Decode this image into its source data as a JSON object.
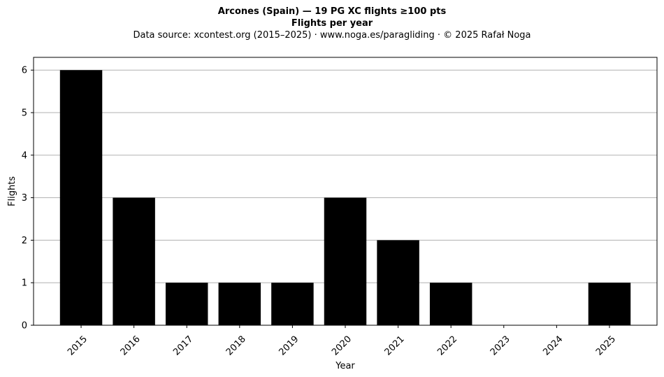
{
  "chart_data": {
    "type": "bar",
    "title": "Arcones (Spain)  —  19 PG XC flights ≥100 pts",
    "subtitle": "Flights per year",
    "source_line": "Data source: xcontest.org (2015–2025)  ·  www.noga.es/paragliding  ·  © 2025 Rafał Noga",
    "xlabel": "Year",
    "ylabel": "Flights",
    "categories": [
      "2015",
      "2016",
      "2017",
      "2018",
      "2019",
      "2020",
      "2021",
      "2022",
      "2023",
      "2024",
      "2025"
    ],
    "values": [
      6,
      3,
      1,
      1,
      1,
      3,
      2,
      1,
      0,
      0,
      1
    ],
    "ylim": [
      0,
      6.3
    ],
    "yticks": [
      0,
      1,
      2,
      3,
      4,
      5,
      6
    ],
    "grid": "horizontal",
    "bar_color": "#000000",
    "grid_color": "#b0b0b0"
  }
}
